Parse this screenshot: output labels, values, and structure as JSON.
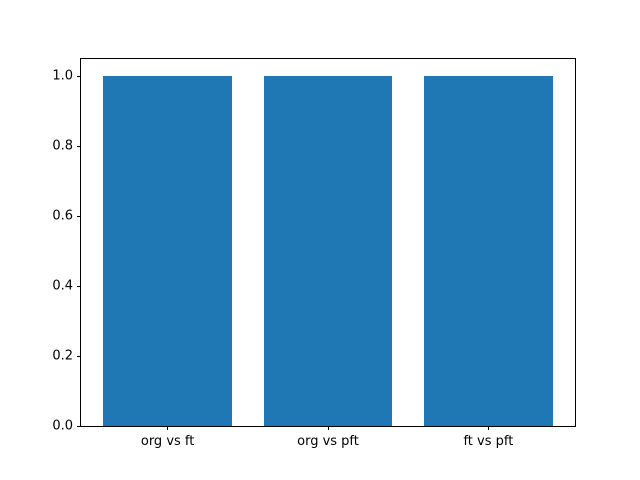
{
  "chart_data": {
    "type": "bar",
    "categories": [
      "org vs ft",
      "org vs pft",
      "ft vs pft"
    ],
    "values": [
      1.0,
      1.0,
      1.0
    ],
    "title": "",
    "xlabel": "",
    "ylabel": "",
    "yticks": [
      0.0,
      0.2,
      0.4,
      0.6,
      0.8,
      1.0
    ],
    "ytick_labels": [
      "0.0",
      "0.2",
      "0.4",
      "0.6",
      "0.8",
      "1.0"
    ],
    "ylim": [
      0,
      1.05
    ],
    "xlim": [
      -0.54,
      2.54
    ],
    "bar_width": 0.8,
    "bar_color": "#1f77b4",
    "spine_color": "#000000",
    "background_color": "#ffffff",
    "grid": false,
    "legend": null
  }
}
